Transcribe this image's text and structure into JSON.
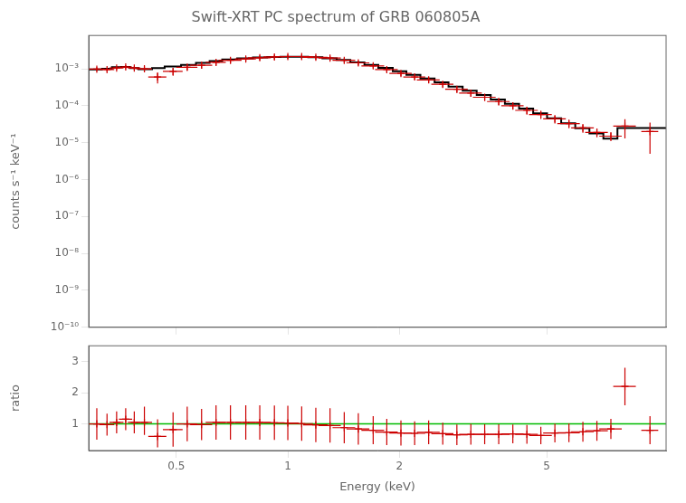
{
  "chart_data": [
    {
      "type": "scatter",
      "title": "Swift-XRT PC spectrum of GRB 060805A",
      "ylabel": "counts s⁻¹ keV⁻¹",
      "log": true,
      "xlim": [
        0.29,
        10.5
      ],
      "ylim": [
        1e-10,
        0.008
      ],
      "xticks": [
        0.5,
        1,
        2,
        5
      ],
      "yticks": [
        {
          "value": 1e-10,
          "label": "10⁻¹⁰"
        },
        {
          "value": 1e-09,
          "label": "10⁻⁹"
        },
        {
          "value": 1e-08,
          "label": "10⁻⁸"
        },
        {
          "value": 1e-07,
          "label": "10⁻⁷"
        },
        {
          "value": 1e-06,
          "label": "10⁻⁶"
        },
        {
          "value": 1e-05,
          "label": "10⁻⁵"
        },
        {
          "value": 0.0001,
          "label": "10⁻⁴"
        },
        {
          "value": 0.001,
          "label": "10⁻³"
        }
      ],
      "tick_labels": "y",
      "grid": false,
      "series": [
        {
          "type": "scatter",
          "color": "#cc0000",
          "marker": "plus",
          "x": [
            0.305,
            0.325,
            0.345,
            0.365,
            0.385,
            0.41,
            0.445,
            0.49,
            0.535,
            0.585,
            0.64,
            0.7,
            0.77,
            0.84,
            0.92,
            1.0,
            1.09,
            1.19,
            1.3,
            1.42,
            1.55,
            1.7,
            1.85,
            2.02,
            2.2,
            2.4,
            2.62,
            2.86,
            3.12,
            3.4,
            3.71,
            4.05,
            4.42,
            4.82,
            5.26,
            5.74,
            6.26,
            6.83,
            7.45,
            8.13,
            9.5
          ],
          "x_err": [
            0.015,
            0.015,
            0.015,
            0.015,
            0.015,
            0.02,
            0.025,
            0.03,
            0.035,
            0.04,
            0.04,
            0.05,
            0.05,
            0.06,
            0.06,
            0.07,
            0.08,
            0.09,
            0.09,
            0.1,
            0.11,
            0.12,
            0.13,
            0.14,
            0.15,
            0.17,
            0.18,
            0.2,
            0.22,
            0.24,
            0.26,
            0.28,
            0.31,
            0.34,
            0.37,
            0.4,
            0.44,
            0.48,
            0.52,
            0.57,
            0.5
          ],
          "values": [
            0.00098,
            0.00095,
            0.00105,
            0.00112,
            0.00105,
            0.001,
            0.0006,
            0.00085,
            0.0011,
            0.00125,
            0.0015,
            0.0017,
            0.00185,
            0.002,
            0.0021,
            0.00215,
            0.00215,
            0.00205,
            0.00195,
            0.0017,
            0.00145,
            0.0012,
            0.00095,
            0.00075,
            0.0006,
            0.0005,
            0.00038,
            0.00028,
            0.00022,
            0.00017,
            0.00013,
            0.0001,
            7.5e-05,
            5.8e-05,
            4.4e-05,
            3.3e-05,
            2.5e-05,
            1.9e-05,
            1.5e-05,
            2.8e-05,
            2e-05
          ],
          "y_err_up": [
            0.00012,
            0.00012,
            0.00012,
            0.00013,
            0.00013,
            0.00018,
            0.0002,
            0.0002,
            0.00022,
            0.00025,
            0.00028,
            0.0003,
            0.0003,
            0.0003,
            0.0003,
            0.0003,
            0.0003,
            0.0003,
            0.00028,
            0.00025,
            0.00022,
            0.00018,
            0.00015,
            0.00012,
            0.0001,
            9e-05,
            7e-05,
            5.5e-05,
            4.5e-05,
            3.5e-05,
            2.8e-05,
            2.2e-05,
            1.8e-05,
            1.4e-05,
            1.1e-05,
            8.5e-06,
            6.5e-06,
            5e-06,
            4e-06,
            1.5e-05,
            1.5e-05
          ],
          "y_err_down": [
            0.00012,
            0.00012,
            0.00012,
            0.00013,
            0.00013,
            0.00018,
            0.0002,
            0.0002,
            0.00022,
            0.00025,
            0.00028,
            0.0003,
            0.0003,
            0.0003,
            0.0003,
            0.0003,
            0.0003,
            0.0003,
            0.00028,
            0.00025,
            0.00022,
            0.00018,
            0.00015,
            0.00012,
            0.0001,
            9e-05,
            7e-05,
            5.5e-05,
            4.5e-05,
            3.5e-05,
            2.8e-05,
            2.2e-05,
            1.8e-05,
            1.4e-05,
            1.1e-05,
            8.5e-06,
            6.5e-06,
            5e-06,
            4e-06,
            1.5e-05,
            1.5e-05
          ]
        },
        {
          "type": "step",
          "color": "#000000",
          "bins": [
            0.29,
            0.315,
            0.335,
            0.355,
            0.375,
            0.395,
            0.43,
            0.465,
            0.515,
            0.565,
            0.615,
            0.665,
            0.73,
            0.805,
            0.88,
            0.955,
            1.04,
            1.135,
            1.24,
            1.355,
            1.475,
            1.61,
            1.755,
            1.92,
            2.09,
            2.28,
            2.49,
            2.715,
            2.965,
            3.235,
            3.53,
            3.855,
            4.21,
            4.595,
            5.01,
            5.47,
            5.97,
            6.52,
            7.11,
            7.76,
            8.47,
            10.5
          ],
          "values": [
            0.00095,
            0.00096,
            0.001,
            0.0011,
            0.00112,
            0.00105,
            0.00098,
            0.00105,
            0.00115,
            0.00128,
            0.00145,
            0.00162,
            0.00178,
            0.00192,
            0.00202,
            0.0021,
            0.00213,
            0.00212,
            0.00205,
            0.00192,
            0.00173,
            0.0015,
            0.00128,
            0.00106,
            0.00086,
            0.00069,
            0.00055,
            0.00043,
            0.00033,
            0.000255,
            0.000195,
            0.000148,
            0.000112,
            8.4e-05,
            6.2e-05,
            4.6e-05,
            3.35e-05,
            2.45e-05,
            1.78e-05,
            1.28e-05,
            2.5e-05
          ]
        }
      ]
    },
    {
      "type": "scatter",
      "xlabel": "Energy (keV)",
      "ylabel": "ratio",
      "log": "x",
      "xlim": [
        0.29,
        10.5
      ],
      "ylim": [
        0.15,
        3.5
      ],
      "xticks": [
        0.5,
        1,
        2,
        5
      ],
      "yticks": [
        1,
        2,
        3
      ],
      "grid": false,
      "series": [
        {
          "type": "scatter",
          "color": "#cc0000",
          "marker": "plus",
          "x": [
            0.305,
            0.325,
            0.345,
            0.365,
            0.385,
            0.41,
            0.445,
            0.49,
            0.535,
            0.585,
            0.64,
            0.7,
            0.77,
            0.84,
            0.92,
            1.0,
            1.09,
            1.19,
            1.3,
            1.42,
            1.55,
            1.7,
            1.85,
            2.02,
            2.2,
            2.4,
            2.62,
            2.86,
            3.12,
            3.4,
            3.71,
            4.05,
            4.42,
            4.82,
            5.26,
            5.74,
            6.26,
            6.83,
            7.45,
            8.13,
            9.5
          ],
          "x_err": [
            0.015,
            0.015,
            0.015,
            0.015,
            0.015,
            0.02,
            0.025,
            0.03,
            0.035,
            0.04,
            0.04,
            0.05,
            0.05,
            0.06,
            0.06,
            0.07,
            0.08,
            0.09,
            0.09,
            0.1,
            0.11,
            0.12,
            0.13,
            0.14,
            0.15,
            0.17,
            0.18,
            0.2,
            0.22,
            0.24,
            0.26,
            0.28,
            0.31,
            0.34,
            0.37,
            0.4,
            0.44,
            0.48,
            0.52,
            0.57,
            0.5
          ],
          "values": [
            1.0,
            0.98,
            1.05,
            1.15,
            1.05,
            1.05,
            0.6,
            0.82,
            1.0,
            0.98,
            1.05,
            1.05,
            1.05,
            1.05,
            1.04,
            1.03,
            1.01,
            0.97,
            0.95,
            0.88,
            0.84,
            0.8,
            0.74,
            0.71,
            0.7,
            0.73,
            0.69,
            0.65,
            0.67,
            0.67,
            0.67,
            0.68,
            0.67,
            0.63,
            0.71,
            0.72,
            0.75,
            0.78,
            0.84,
            2.2,
            0.8
          ],
          "y_err_up": [
            0.5,
            0.35,
            0.35,
            0.35,
            0.35,
            0.5,
            0.55,
            0.55,
            0.55,
            0.5,
            0.55,
            0.55,
            0.55,
            0.55,
            0.55,
            0.55,
            0.55,
            0.55,
            0.55,
            0.5,
            0.5,
            0.45,
            0.42,
            0.4,
            0.38,
            0.38,
            0.35,
            0.33,
            0.33,
            0.32,
            0.32,
            0.3,
            0.3,
            0.28,
            0.3,
            0.3,
            0.32,
            0.32,
            0.32,
            0.6,
            0.45
          ],
          "y_err_down": [
            0.5,
            0.35,
            0.35,
            0.35,
            0.35,
            0.4,
            0.35,
            0.55,
            0.55,
            0.5,
            0.55,
            0.55,
            0.55,
            0.55,
            0.55,
            0.55,
            0.55,
            0.55,
            0.55,
            0.5,
            0.5,
            0.45,
            0.42,
            0.4,
            0.38,
            0.38,
            0.35,
            0.33,
            0.33,
            0.32,
            0.32,
            0.3,
            0.3,
            0.28,
            0.3,
            0.3,
            0.32,
            0.32,
            0.32,
            0.6,
            0.45
          ]
        },
        {
          "type": "hline",
          "color": "#00bb00",
          "values": [
            1.0
          ]
        }
      ]
    }
  ]
}
